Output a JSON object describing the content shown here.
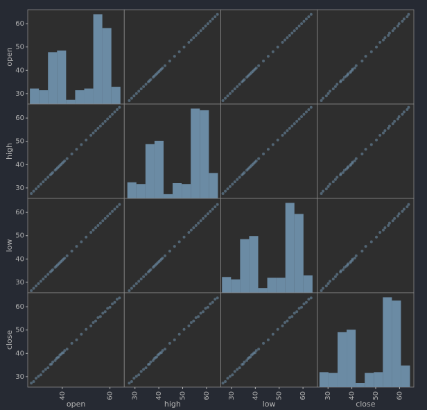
{
  "chart_data": {
    "type": "scatter_matrix",
    "color": "#6b8ba4",
    "series": [
      {
        "name": "open",
        "lim": [
          25.5,
          66
        ],
        "xticks": [
          40,
          60
        ],
        "yticks": [
          30,
          40,
          50,
          60
        ],
        "values": [
          27,
          28,
          29,
          30,
          31,
          32,
          33,
          34,
          35,
          35.5,
          36,
          37,
          37.5,
          38,
          38.5,
          39,
          39.5,
          40,
          40.5,
          41,
          42,
          44,
          46,
          48,
          50,
          52,
          53,
          54,
          55,
          56,
          57,
          58,
          59,
          60,
          61,
          62,
          63,
          64
        ],
        "bins": [
          26.4,
          30.2,
          34.0,
          37.8,
          41.6,
          45.4,
          49.2,
          53.0,
          56.8,
          60.6,
          64.4
        ],
        "counts": [
          90,
          80,
          300,
          310,
          25,
          80,
          90,
          520,
          440,
          100
        ]
      },
      {
        "name": "high",
        "lim": [
          25.5,
          66
        ],
        "xticks": [
          30,
          40,
          50,
          60
        ],
        "yticks": [
          30,
          40,
          50,
          60
        ],
        "values": [
          27.6,
          28.6,
          29.6,
          30.6,
          31.6,
          32.6,
          33.6,
          34.6,
          35.6,
          36.1,
          36.6,
          37.6,
          38.1,
          38.6,
          39.1,
          39.6,
          40.1,
          40.6,
          41.1,
          41.6,
          42.6,
          44.6,
          46.6,
          48.6,
          50.6,
          52.6,
          53.6,
          54.6,
          55.6,
          56.6,
          57.6,
          58.6,
          59.6,
          60.6,
          61.6,
          62.6,
          63.6,
          64.6
        ],
        "bins": [
          26.8,
          30.6,
          34.4,
          38.2,
          42.0,
          45.8,
          49.6,
          53.4,
          57.2,
          61.0,
          64.8
        ],
        "counts": [
          95,
          85,
          320,
          340,
          25,
          90,
          85,
          530,
          520,
          150
        ]
      },
      {
        "name": "low",
        "lim": [
          25.5,
          66
        ],
        "xticks": [
          30,
          40,
          50,
          60
        ],
        "yticks": [
          30,
          40,
          50,
          60
        ],
        "values": [
          26.4,
          27.4,
          28.4,
          29.4,
          30.4,
          31.4,
          32.4,
          33.4,
          34.4,
          34.9,
          35.4,
          36.4,
          36.9,
          37.4,
          37.9,
          38.4,
          38.9,
          39.4,
          39.9,
          40.4,
          41.4,
          43.4,
          45.4,
          47.4,
          49.4,
          51.4,
          52.4,
          53.4,
          54.4,
          55.4,
          56.4,
          57.4,
          58.4,
          59.4,
          60.4,
          61.4,
          62.4,
          63.4
        ],
        "bins": [
          26.0,
          29.8,
          33.6,
          37.4,
          41.2,
          45.0,
          48.8,
          52.6,
          56.4,
          60.2,
          64.0
        ],
        "counts": [
          100,
          85,
          340,
          360,
          30,
          95,
          95,
          570,
          500,
          110
        ]
      },
      {
        "name": "close",
        "lim": [
          25.5,
          66
        ],
        "xticks": [
          30,
          40,
          50,
          60
        ],
        "yticks": [
          30,
          40,
          50,
          60
        ],
        "values": [
          27.2,
          27.9,
          29.3,
          30.1,
          30.8,
          32.2,
          33.1,
          33.8,
          35.2,
          35.4,
          36.3,
          36.9,
          37.7,
          38.2,
          38.4,
          39.3,
          39.6,
          40.2,
          40.3,
          41.2,
          41.8,
          44.3,
          45.8,
          48.2,
          50.3,
          51.8,
          53.2,
          53.9,
          55.3,
          55.8,
          57.2,
          57.9,
          59.3,
          59.8,
          61.2,
          61.9,
          63.2,
          63.8
        ],
        "bins": [
          26.4,
          30.2,
          34.0,
          37.8,
          41.6,
          45.4,
          49.2,
          53.0,
          56.8,
          60.6,
          64.4
        ],
        "counts": [
          90,
          85,
          330,
          345,
          25,
          85,
          90,
          540,
          520,
          130
        ]
      }
    ]
  }
}
